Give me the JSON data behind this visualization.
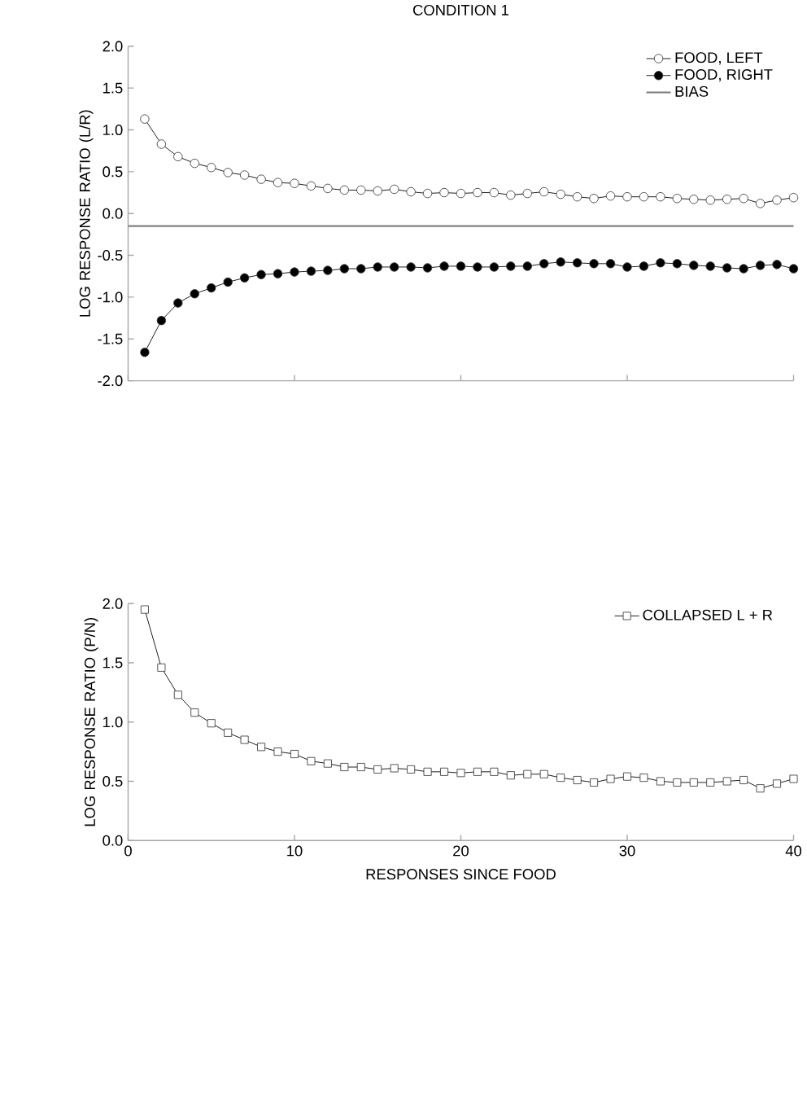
{
  "chart_data": [
    {
      "type": "line",
      "title": "CONDITION 1",
      "ylabel": "LOG RESPONSE RATIO (L/R)",
      "xlim": [
        0,
        40
      ],
      "xticks": [
        {
          "value": 0,
          "label": null
        },
        {
          "value": 10,
          "label": null
        },
        {
          "value": 20,
          "label": null
        },
        {
          "value": 30,
          "label": null
        },
        {
          "value": 40,
          "label": null
        }
      ],
      "ylim": [
        -2.0,
        2.0
      ],
      "yticks": [
        {
          "value": -2,
          "label": "-2.0"
        },
        {
          "value": -1.5,
          "label": "-1.5"
        },
        {
          "value": -1,
          "label": "-1.0"
        },
        {
          "value": -0.5,
          "label": "-0.5"
        },
        {
          "value": 0,
          "label": "0.0"
        },
        {
          "value": 0.5,
          "label": "0.5"
        },
        {
          "value": 1,
          "label": "1.0"
        },
        {
          "value": 1.5,
          "label": "1.5"
        },
        {
          "value": 2,
          "label": "2.0"
        }
      ],
      "tick_labels": "y",
      "grid": false,
      "legend": "top right",
      "x": [
        1,
        2,
        3,
        4,
        5,
        6,
        7,
        8,
        9,
        10,
        11,
        12,
        13,
        14,
        15,
        16,
        17,
        18,
        19,
        20,
        21,
        22,
        23,
        24,
        25,
        26,
        27,
        28,
        29,
        30,
        31,
        32,
        33,
        34,
        35,
        36,
        37,
        38,
        39,
        40
      ],
      "series": [
        {
          "name": "FOOD, LEFT",
          "color": "#ffffff",
          "marker": "circle",
          "values": [
            1.13,
            0.83,
            0.68,
            0.6,
            0.55,
            0.49,
            0.46,
            0.41,
            0.37,
            0.36,
            0.33,
            0.3,
            0.28,
            0.28,
            0.27,
            0.29,
            0.26,
            0.24,
            0.25,
            0.24,
            0.25,
            0.25,
            0.22,
            0.24,
            0.26,
            0.23,
            0.2,
            0.18,
            0.21,
            0.2,
            0.2,
            0.2,
            0.18,
            0.17,
            0.16,
            0.17,
            0.18,
            0.12,
            0.16,
            0.19
          ]
        },
        {
          "name": "FOOD, RIGHT",
          "color": "#000000",
          "marker": "circle",
          "values": [
            -1.66,
            -1.28,
            -1.07,
            -0.96,
            -0.89,
            -0.82,
            -0.77,
            -0.73,
            -0.72,
            -0.7,
            -0.69,
            -0.68,
            -0.66,
            -0.66,
            -0.64,
            -0.64,
            -0.64,
            -0.65,
            -0.63,
            -0.63,
            -0.64,
            -0.64,
            -0.63,
            -0.63,
            -0.6,
            -0.58,
            -0.59,
            -0.6,
            -0.6,
            -0.64,
            -0.63,
            -0.59,
            -0.6,
            -0.62,
            -0.63,
            -0.65,
            -0.66,
            -0.62,
            -0.61,
            -0.66
          ]
        }
      ],
      "ref_lines": [
        {
          "axis": "y",
          "value": -0.15,
          "label": "BIAS",
          "color": "#808080"
        }
      ]
    },
    {
      "type": "line",
      "xlabel": "RESPONSES SINCE FOOD",
      "ylabel": "LOG RESPONSE RATIO (P/N)",
      "xlim": [
        0,
        40
      ],
      "xticks": [
        0,
        10,
        20,
        30,
        40
      ],
      "ylim": [
        0.0,
        2.0
      ],
      "yticks": [
        {
          "value": 0,
          "label": "0.0"
        },
        {
          "value": 0.5,
          "label": "0.5"
        },
        {
          "value": 1,
          "label": "1.0"
        },
        {
          "value": 1.5,
          "label": "1.5"
        },
        {
          "value": 2,
          "label": "2.0"
        }
      ],
      "grid": false,
      "legend": "top right",
      "x": [
        1,
        2,
        3,
        4,
        5,
        6,
        7,
        8,
        9,
        10,
        11,
        12,
        13,
        14,
        15,
        16,
        17,
        18,
        19,
        20,
        21,
        22,
        23,
        24,
        25,
        26,
        27,
        28,
        29,
        30,
        31,
        32,
        33,
        34,
        35,
        36,
        37,
        38,
        39,
        40
      ],
      "series": [
        {
          "name": "COLLAPSED L + R",
          "color": "#ffffff",
          "marker": "square",
          "values": [
            1.95,
            1.46,
            1.23,
            1.08,
            0.99,
            0.91,
            0.85,
            0.79,
            0.75,
            0.73,
            0.67,
            0.65,
            0.62,
            0.62,
            0.6,
            0.61,
            0.6,
            0.58,
            0.58,
            0.57,
            0.58,
            0.58,
            0.55,
            0.56,
            0.56,
            0.53,
            0.51,
            0.49,
            0.52,
            0.54,
            0.53,
            0.5,
            0.49,
            0.49,
            0.49,
            0.5,
            0.51,
            0.44,
            0.48,
            0.52
          ]
        }
      ]
    }
  ]
}
